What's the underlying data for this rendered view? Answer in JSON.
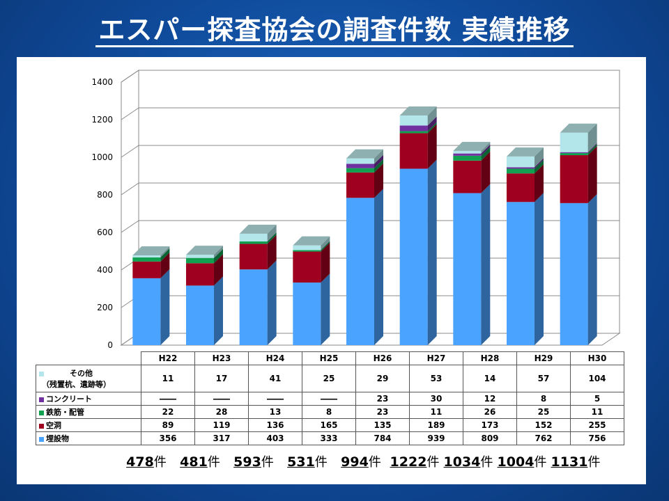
{
  "title": "エスパー探査協会の調査件数 実績推移",
  "colors": {
    "buried": "#4aa3ff",
    "cavity": "#a00020",
    "rebar": "#10a050",
    "concrete": "#7030a0",
    "other": "#b3e6ea",
    "background": "#1a5fb4"
  },
  "chart_data": {
    "type": "bar",
    "stacked": true,
    "categories": [
      "H22",
      "H23",
      "H24",
      "H25",
      "H26",
      "H27",
      "H28",
      "H29",
      "H30"
    ],
    "series": [
      {
        "name": "埋設物",
        "values": [
          356,
          317,
          403,
          333,
          784,
          939,
          809,
          762,
          756
        ]
      },
      {
        "name": "空洞",
        "values": [
          89,
          119,
          136,
          165,
          135,
          189,
          173,
          152,
          255
        ]
      },
      {
        "name": "鉄筋・配管",
        "values": [
          22,
          28,
          13,
          8,
          23,
          11,
          26,
          25,
          11
        ]
      },
      {
        "name": "コンクリート",
        "values": [
          null,
          null,
          null,
          null,
          23,
          30,
          12,
          8,
          5
        ]
      },
      {
        "name": "その他",
        "name_note": "（残置杭、遺跡等）",
        "values": [
          11,
          17,
          41,
          25,
          29,
          53,
          14,
          57,
          104
        ]
      }
    ],
    "ylim": [
      0,
      1400
    ],
    "yticks": [
      0,
      200,
      400,
      600,
      800,
      1000,
      1200,
      1400
    ],
    "grid": true,
    "legend": "data-table-below",
    "totals": [
      478,
      481,
      593,
      531,
      994,
      1222,
      1034,
      1004,
      1131
    ],
    "total_unit": "件"
  },
  "table": {
    "missing_mark": "――",
    "rows": [
      {
        "label": "その他",
        "label2": "（残置杭、遺跡等）",
        "values": [
          "11",
          "17",
          "41",
          "25",
          "29",
          "53",
          "14",
          "57",
          "104"
        ]
      },
      {
        "label": "コンクリート",
        "values": [
          "――",
          "――",
          "――",
          "――",
          "23",
          "30",
          "12",
          "8",
          "5"
        ]
      },
      {
        "label": "鉄筋・配管",
        "values": [
          "22",
          "28",
          "13",
          "8",
          "23",
          "11",
          "26",
          "25",
          "11"
        ]
      },
      {
        "label": "空洞",
        "values": [
          "89",
          "119",
          "136",
          "165",
          "135",
          "189",
          "173",
          "152",
          "255"
        ]
      },
      {
        "label": "埋設物",
        "values": [
          "356",
          "317",
          "403",
          "333",
          "784",
          "939",
          "809",
          "762",
          "756"
        ]
      }
    ]
  }
}
